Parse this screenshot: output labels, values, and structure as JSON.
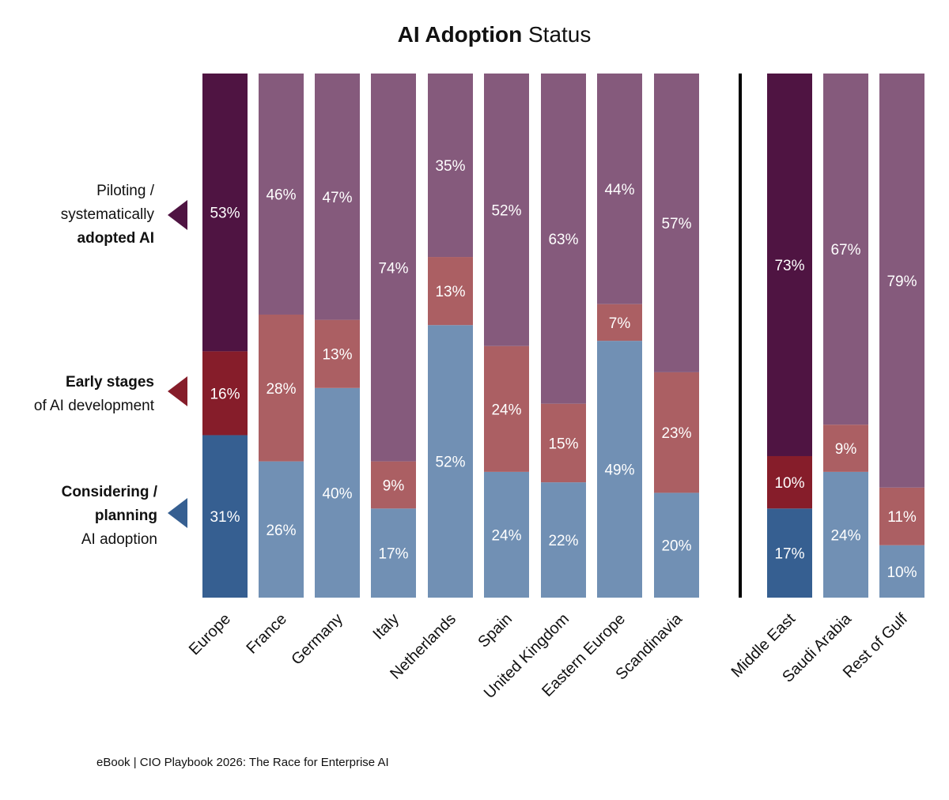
{
  "chart_data": {
    "type": "bar",
    "stacked": true,
    "title_bold": "AI Adoption",
    "title_rest": "Status",
    "categories": [
      "Europe",
      "France",
      "Germany",
      "Italy",
      "Netherlands",
      "Spain",
      "United Kingdom",
      "Eastern Europe",
      "Scandinavia",
      "Middle East",
      "Saudi Arabia",
      "Rest of Gulf"
    ],
    "groups": [
      {
        "categories": [
          "Europe",
          "France",
          "Germany",
          "Italy",
          "Netherlands",
          "Spain",
          "United Kingdom",
          "Eastern Europe",
          "Scandinavia"
        ],
        "highlight": "Europe"
      },
      {
        "categories": [
          "Middle East",
          "Saudi Arabia",
          "Rest of Gulf"
        ],
        "highlight": "Middle East"
      }
    ],
    "series": [
      {
        "name": "Considering / planning AI adoption",
        "values": [
          31,
          26,
          40,
          17,
          52,
          24,
          22,
          49,
          20,
          17,
          24,
          10
        ],
        "color_dark": "#365f91",
        "color_light": "#7190b4"
      },
      {
        "name": "Early stages of AI development",
        "values": [
          16,
          28,
          13,
          9,
          13,
          24,
          15,
          7,
          23,
          10,
          9,
          11
        ],
        "color_dark": "#861d2a",
        "color_light": "#ab5f63"
      },
      {
        "name": "Piloting / systematically adopted AI",
        "values": [
          53,
          46,
          47,
          74,
          35,
          52,
          63,
          44,
          57,
          73,
          67,
          79
        ],
        "color_dark": "#4f1442",
        "color_light": "#855a7c"
      }
    ],
    "ylim": [
      0,
      100
    ],
    "unit": "%",
    "grid": false,
    "legend_placement": "left",
    "legend": [
      {
        "lines": [
          {
            "text": "Piloting /",
            "bold": false
          },
          {
            "text": "systematically",
            "bold": false
          },
          {
            "text": "adopted AI",
            "bold": true
          }
        ],
        "color": "#4f1442"
      },
      {
        "lines": [
          {
            "text": "Early stages",
            "bold": true
          },
          {
            "text": "of AI development",
            "bold": false
          }
        ],
        "color": "#861d2a"
      },
      {
        "lines": [
          {
            "text": "Considering /",
            "bold": true
          },
          {
            "text": "planning",
            "bold": true
          },
          {
            "text": "AI adoption",
            "bold": false
          }
        ],
        "color": "#365f91"
      }
    ]
  },
  "footer": "eBook | CIO Playbook 2026: The Race for Enterprise AI"
}
